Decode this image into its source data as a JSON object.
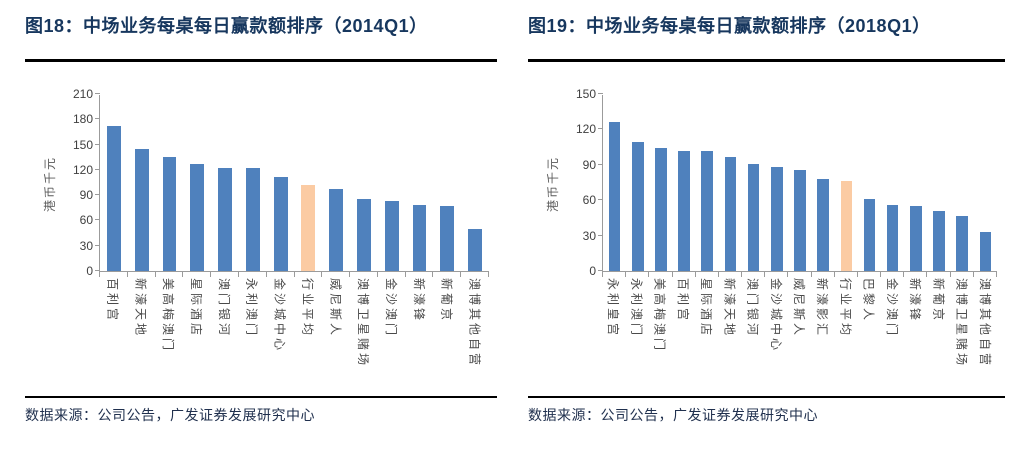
{
  "colors": {
    "bar_blue": "#4f81bd",
    "bar_highlight": "#fbcba3",
    "title_text": "#17375e",
    "source_text": "#20304e",
    "axis_line": "#9b9b9b"
  },
  "chart_data": [
    {
      "type": "bar",
      "title": "图18：中场业务每桌每日赢款额排序（2014Q1）",
      "ylabel": "港币千元",
      "xlabel": "",
      "ylim": [
        0,
        210
      ],
      "yticks": [
        0,
        30,
        60,
        90,
        120,
        150,
        180,
        210
      ],
      "grid": false,
      "legend": false,
      "categories": [
        "百利宫",
        "新濠天地",
        "美高梅澳门",
        "星际酒店",
        "澳门银河",
        "永利澳门",
        "金沙城中心",
        "行业平均",
        "威尼斯人",
        "澳博卫星赌场",
        "金沙澳门",
        "新濠锋",
        "新葡京",
        "澳博其他自营"
      ],
      "values": [
        172,
        145,
        135,
        127,
        122,
        122,
        112,
        102,
        97,
        85,
        83,
        78,
        77,
        50
      ],
      "highlight_category": "行业平均",
      "highlight_index": 7,
      "source": "数据来源：公司公告，广发证券发展研究中心"
    },
    {
      "type": "bar",
      "title": "图19：中场业务每桌每日赢款额排序（2018Q1）",
      "ylabel": "港币千元",
      "xlabel": "",
      "ylim": [
        0,
        150
      ],
      "yticks": [
        0,
        30,
        60,
        90,
        120,
        150
      ],
      "grid": false,
      "legend": false,
      "categories": [
        "永利皇宫",
        "永利澳门",
        "美高梅澳门",
        "百利宫",
        "星际酒店",
        "新濠天地",
        "澳门银河",
        "金沙城中心",
        "威尼斯人",
        "新濠影汇",
        "行业平均",
        "巴黎人",
        "金沙澳门",
        "新濠锋",
        "新葡京",
        "澳博卫星赌场",
        "澳博其他自营"
      ],
      "values": [
        126,
        109,
        104,
        102,
        102,
        97,
        91,
        88,
        86,
        78,
        76,
        61,
        56,
        55,
        51,
        47,
        33
      ],
      "highlight_category": "行业平均",
      "highlight_index": 10,
      "source": "数据来源：公司公告，广发证券发展研究中心"
    }
  ]
}
